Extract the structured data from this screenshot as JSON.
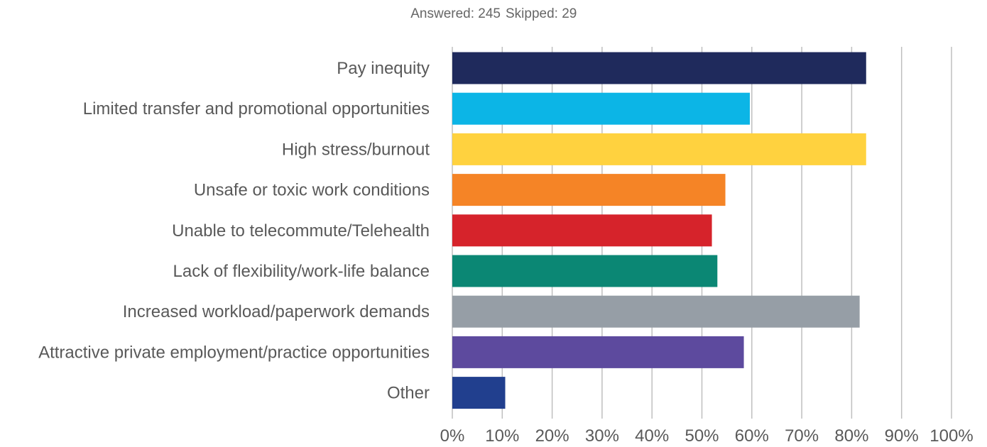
{
  "summary": {
    "answered_label": "Answered: 245",
    "skipped_label": "Skipped: 29"
  },
  "chart_data": {
    "type": "bar",
    "orientation": "horizontal",
    "categories": [
      "Pay inequity",
      "Limited transfer and promotional opportunities",
      "High stress/burnout",
      "Unsafe or toxic work conditions",
      "Unable to telecommute/Telehealth",
      "Lack of flexibility/work-life balance",
      "Increased workload/paperwork demands",
      "Attractive private employment/practice opportunities",
      "Other"
    ],
    "values": [
      82.9,
      59.6,
      82.9,
      54.7,
      52.0,
      53.1,
      81.6,
      58.4,
      10.6
    ],
    "colors": [
      "#1f2a5c",
      "#0cb5e6",
      "#ffd23f",
      "#f58426",
      "#d6232b",
      "#0b8774",
      "#969ea6",
      "#5d4a9e",
      "#213f8e"
    ],
    "xlim": [
      0,
      100
    ],
    "ticks": [
      0,
      10,
      20,
      30,
      40,
      50,
      60,
      70,
      80,
      90,
      100
    ],
    "tick_labels": [
      "0%",
      "10%",
      "20%",
      "30%",
      "40%",
      "50%",
      "60%",
      "70%",
      "80%",
      "90%",
      "100%"
    ],
    "grid": true
  }
}
